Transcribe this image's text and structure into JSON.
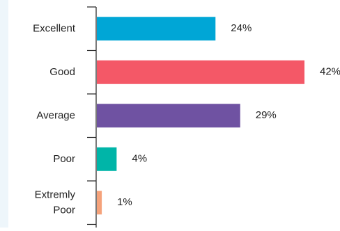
{
  "chart_data": {
    "type": "bar",
    "orientation": "horizontal",
    "categories": [
      "Excellent",
      "Good",
      "Average",
      "Poor",
      "Extremly Poor"
    ],
    "values": [
      24,
      42,
      29,
      4,
      1
    ],
    "value_labels": [
      "24%",
      "42%",
      "29%",
      "4%",
      "1%"
    ],
    "colors": [
      "#00a6d6",
      "#f45867",
      "#6f52a2",
      "#00b5a8",
      "#f5a27a"
    ],
    "title": "",
    "xlabel": "",
    "ylabel": "",
    "xlim": [
      0,
      42
    ],
    "grid": false,
    "legend": "none"
  }
}
